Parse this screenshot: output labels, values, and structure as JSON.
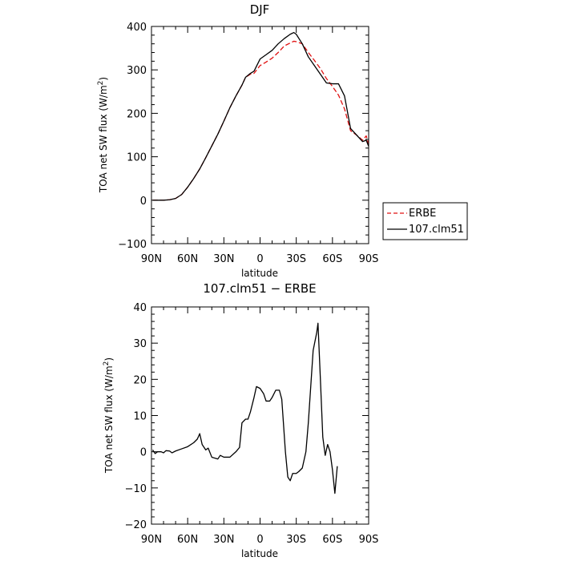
{
  "chart_data": [
    {
      "type": "line",
      "title": "DJF",
      "xlabel": "latitude",
      "ylabel": "TOA net SW flux (W/m²)",
      "ylabel_main": "TOA net SW flux (W/m",
      "ylabel_sup": "2",
      "ylabel_end": ")",
      "xlim": [
        90,
        -90
      ],
      "ylim": [
        -100,
        400
      ],
      "x_ticks": [
        90,
        60,
        30,
        0,
        -30,
        -60,
        -90
      ],
      "x_tick_labels": [
        "90N",
        "60N",
        "30N",
        "0",
        "30S",
        "60S",
        "90S"
      ],
      "y_ticks": [
        -100,
        0,
        100,
        200,
        300,
        400
      ],
      "y_tick_labels": [
        "−100",
        "0",
        "100",
        "200",
        "300",
        "400"
      ],
      "legend_position": "right",
      "series": [
        {
          "name": "ERBE",
          "color": "#e01010",
          "dash": "dashed",
          "points": [
            [
              89,
              0
            ],
            [
              85,
              0
            ],
            [
              80,
              0
            ],
            [
              75,
              1
            ],
            [
              70,
              4
            ],
            [
              65,
              13
            ],
            [
              60,
              30
            ],
            [
              55,
              50
            ],
            [
              50,
              72
            ],
            [
              45,
              98
            ],
            [
              40,
              125
            ],
            [
              35,
              152
            ],
            [
              30,
              182
            ],
            [
              25,
              213
            ],
            [
              20,
              240
            ],
            [
              15,
              265
            ],
            [
              12,
              283
            ],
            [
              8,
              290
            ],
            [
              5,
              292
            ],
            [
              0,
              310
            ],
            [
              -5,
              318
            ],
            [
              -10,
              327
            ],
            [
              -15,
              340
            ],
            [
              -20,
              355
            ],
            [
              -25,
              362
            ],
            [
              -28,
              366
            ],
            [
              -30,
              365
            ],
            [
              -35,
              360
            ],
            [
              -40,
              340
            ],
            [
              -45,
              322
            ],
            [
              -50,
              303
            ],
            [
              -55,
              280
            ],
            [
              -60,
              262
            ],
            [
              -65,
              242
            ],
            [
              -70,
              210
            ],
            [
              -75,
              160
            ],
            [
              -80,
              150
            ],
            [
              -85,
              138
            ],
            [
              -88,
              148
            ],
            [
              -90,
              128
            ]
          ]
        },
        {
          "name": "107.clm51",
          "color": "#000000",
          "dash": "solid",
          "points": [
            [
              89,
              0
            ],
            [
              85,
              0
            ],
            [
              80,
              0
            ],
            [
              75,
              1
            ],
            [
              70,
              4
            ],
            [
              65,
              13
            ],
            [
              60,
              30
            ],
            [
              55,
              50
            ],
            [
              50,
              72
            ],
            [
              45,
              98
            ],
            [
              40,
              125
            ],
            [
              35,
              152
            ],
            [
              30,
              182
            ],
            [
              25,
              213
            ],
            [
              20,
              240
            ],
            [
              15,
              265
            ],
            [
              12,
              283
            ],
            [
              8,
              292
            ],
            [
              5,
              297
            ],
            [
              0,
              325
            ],
            [
              -5,
              335
            ],
            [
              -10,
              345
            ],
            [
              -15,
              360
            ],
            [
              -20,
              372
            ],
            [
              -25,
              382
            ],
            [
              -28,
              386
            ],
            [
              -30,
              382
            ],
            [
              -35,
              360
            ],
            [
              -40,
              330
            ],
            [
              -45,
              310
            ],
            [
              -50,
              290
            ],
            [
              -55,
              270
            ],
            [
              -60,
              268
            ],
            [
              -65,
              268
            ],
            [
              -70,
              240
            ],
            [
              -75,
              165
            ],
            [
              -80,
              150
            ],
            [
              -85,
              135
            ],
            [
              -88,
              138
            ],
            [
              -90,
              124
            ]
          ]
        }
      ]
    },
    {
      "type": "line",
      "title": "107.clm51 − ERBE",
      "xlabel": "latitude",
      "ylabel": "TOA net SW flux (W/m²)",
      "ylabel_main": "TOA net SW flux (W/m",
      "ylabel_sup": "2",
      "ylabel_end": ")",
      "xlim": [
        90,
        -90
      ],
      "ylim": [
        -20,
        40
      ],
      "x_ticks": [
        90,
        60,
        30,
        0,
        -30,
        -60,
        -90
      ],
      "x_tick_labels": [
        "90N",
        "60N",
        "30N",
        "0",
        "30S",
        "60S",
        "90S"
      ],
      "y_ticks": [
        -20,
        -10,
        0,
        10,
        20,
        30,
        40
      ],
      "y_tick_labels": [
        "−20",
        "−10",
        "0",
        "10",
        "20",
        "30",
        "40"
      ],
      "series": [
        {
          "color": "#000000",
          "dash": "solid",
          "points": [
            [
              89,
              0.5
            ],
            [
              87,
              -0.5
            ],
            [
              85,
              0
            ],
            [
              82,
              0
            ],
            [
              80,
              -0.3
            ],
            [
              78,
              0.3
            ],
            [
              75,
              0.2
            ],
            [
              73,
              -0.3
            ],
            [
              70,
              0.2
            ],
            [
              65,
              0.8
            ],
            [
              60,
              1.4
            ],
            [
              55,
              2.5
            ],
            [
              52,
              3.5
            ],
            [
              50,
              5
            ],
            [
              48,
              2
            ],
            [
              45,
              0.5
            ],
            [
              43,
              1
            ],
            [
              40,
              -1.5
            ],
            [
              35,
              -2
            ],
            [
              33,
              -1
            ],
            [
              30,
              -1.5
            ],
            [
              25,
              -1.5
            ],
            [
              20,
              0
            ],
            [
              17,
              1.2
            ],
            [
              15,
              8
            ],
            [
              12,
              9
            ],
            [
              10,
              9
            ],
            [
              8,
              11
            ],
            [
              5,
              15
            ],
            [
              3,
              18
            ],
            [
              0,
              17.5
            ],
            [
              -3,
              16
            ],
            [
              -5,
              14
            ],
            [
              -8,
              14
            ],
            [
              -10,
              15
            ],
            [
              -13,
              17
            ],
            [
              -16,
              17
            ],
            [
              -18,
              14.5
            ],
            [
              -21,
              0
            ],
            [
              -23,
              -7
            ],
            [
              -25,
              -8
            ],
            [
              -27,
              -6
            ],
            [
              -30,
              -6
            ],
            [
              -32,
              -5.5
            ],
            [
              -35,
              -4.5
            ],
            [
              -38,
              0
            ],
            [
              -40,
              8
            ],
            [
              -42,
              18
            ],
            [
              -44,
              28
            ],
            [
              -47,
              33
            ],
            [
              -48,
              35.5
            ],
            [
              -50,
              20
            ],
            [
              -52,
              4
            ],
            [
              -54,
              -1
            ],
            [
              -56,
              2
            ],
            [
              -58,
              0
            ],
            [
              -60,
              -5
            ],
            [
              -62,
              -11.5
            ],
            [
              -64,
              -4
            ]
          ]
        }
      ]
    }
  ]
}
